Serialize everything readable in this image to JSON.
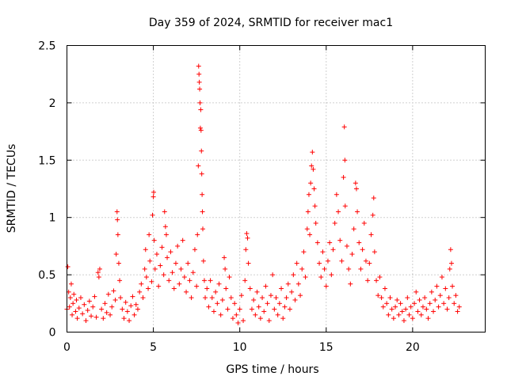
{
  "chart_data": {
    "type": "scatter",
    "title": "Day 359 of 2024, SRMTID for receiver mac1",
    "xlabel": "GPS time / hours",
    "ylabel": "SRMTID / TECUs",
    "xlim": [
      0,
      24.2
    ],
    "ylim": [
      0,
      2.5
    ],
    "xticks": [
      0,
      5,
      10,
      15,
      20
    ],
    "xtick_labels": [
      "0",
      "5",
      "10",
      "15",
      "20"
    ],
    "yticks": [
      0,
      0.5,
      1,
      1.5,
      2,
      2.5
    ],
    "ytick_labels": [
      "0",
      "0.5",
      "1",
      "1.5",
      "2",
      "2.5"
    ],
    "grid": true,
    "marker": "+",
    "color": "#ff0000",
    "series": [
      {
        "name": "mac1",
        "points": [
          [
            0.0,
            0.2
          ],
          [
            0.05,
            0.57
          ],
          [
            0.1,
            0.35
          ],
          [
            0.15,
            0.22
          ],
          [
            0.2,
            0.3
          ],
          [
            0.25,
            0.42
          ],
          [
            0.3,
            0.15
          ],
          [
            0.35,
            0.25
          ],
          [
            0.4,
            0.33
          ],
          [
            0.5,
            0.18
          ],
          [
            0.55,
            0.28
          ],
          [
            0.6,
            0.12
          ],
          [
            0.7,
            0.21
          ],
          [
            0.8,
            0.3
          ],
          [
            0.9,
            0.16
          ],
          [
            1.0,
            0.24
          ],
          [
            1.1,
            0.1
          ],
          [
            1.2,
            0.19
          ],
          [
            1.3,
            0.27
          ],
          [
            1.4,
            0.14
          ],
          [
            1.5,
            0.22
          ],
          [
            1.6,
            0.31
          ],
          [
            1.7,
            0.13
          ],
          [
            1.8,
            0.52
          ],
          [
            1.85,
            0.48
          ],
          [
            1.9,
            0.55
          ],
          [
            2.0,
            0.2
          ],
          [
            2.1,
            0.12
          ],
          [
            2.2,
            0.25
          ],
          [
            2.3,
            0.17
          ],
          [
            2.4,
            0.33
          ],
          [
            2.5,
            0.15
          ],
          [
            2.6,
            0.22
          ],
          [
            2.7,
            0.36
          ],
          [
            2.8,
            0.28
          ],
          [
            2.85,
            0.68
          ],
          [
            2.9,
            1.05
          ],
          [
            2.92,
            0.98
          ],
          [
            2.95,
            0.85
          ],
          [
            3.0,
            0.6
          ],
          [
            3.05,
            0.45
          ],
          [
            3.1,
            0.3
          ],
          [
            3.2,
            0.2
          ],
          [
            3.3,
            0.12
          ],
          [
            3.4,
            0.26
          ],
          [
            3.5,
            0.18
          ],
          [
            3.6,
            0.1
          ],
          [
            3.7,
            0.23
          ],
          [
            3.8,
            0.31
          ],
          [
            3.9,
            0.15
          ],
          [
            4.0,
            0.24
          ],
          [
            4.1,
            0.2
          ],
          [
            4.2,
            0.35
          ],
          [
            4.3,
            0.42
          ],
          [
            4.4,
            0.3
          ],
          [
            4.5,
            0.55
          ],
          [
            4.55,
            0.72
          ],
          [
            4.6,
            0.48
          ],
          [
            4.7,
            0.38
          ],
          [
            4.75,
            0.85
          ],
          [
            4.8,
            0.62
          ],
          [
            4.9,
            0.44
          ],
          [
            4.95,
            1.02
          ],
          [
            5.0,
            1.18
          ],
          [
            5.02,
            1.22
          ],
          [
            5.05,
            0.8
          ],
          [
            5.1,
            0.55
          ],
          [
            5.2,
            0.68
          ],
          [
            5.3,
            0.4
          ],
          [
            5.4,
            0.58
          ],
          [
            5.5,
            0.74
          ],
          [
            5.6,
            0.5
          ],
          [
            5.65,
            1.05
          ],
          [
            5.7,
            0.92
          ],
          [
            5.75,
            0.85
          ],
          [
            5.8,
            0.65
          ],
          [
            5.9,
            0.45
          ],
          [
            6.0,
            0.7
          ],
          [
            6.1,
            0.52
          ],
          [
            6.2,
            0.38
          ],
          [
            6.3,
            0.6
          ],
          [
            6.4,
            0.75
          ],
          [
            6.5,
            0.42
          ],
          [
            6.6,
            0.55
          ],
          [
            6.7,
            0.8
          ],
          [
            6.8,
            0.48
          ],
          [
            6.9,
            0.35
          ],
          [
            7.0,
            0.6
          ],
          [
            7.1,
            0.45
          ],
          [
            7.2,
            0.3
          ],
          [
            7.3,
            0.52
          ],
          [
            7.4,
            0.72
          ],
          [
            7.5,
            0.4
          ],
          [
            7.55,
            0.85
          ],
          [
            7.6,
            1.45
          ],
          [
            7.62,
            2.32
          ],
          [
            7.64,
            2.25
          ],
          [
            7.66,
            2.18
          ],
          [
            7.68,
            2.12
          ],
          [
            7.7,
            2.0
          ],
          [
            7.72,
            1.78
          ],
          [
            7.74,
            1.94
          ],
          [
            7.76,
            1.76
          ],
          [
            7.78,
            1.58
          ],
          [
            7.8,
            1.38
          ],
          [
            7.82,
            1.2
          ],
          [
            7.84,
            1.05
          ],
          [
            7.86,
            0.9
          ],
          [
            7.9,
            0.62
          ],
          [
            7.95,
            0.45
          ],
          [
            8.0,
            0.3
          ],
          [
            8.1,
            0.38
          ],
          [
            8.2,
            0.22
          ],
          [
            8.3,
            0.45
          ],
          [
            8.4,
            0.3
          ],
          [
            8.5,
            0.18
          ],
          [
            8.6,
            0.35
          ],
          [
            8.7,
            0.25
          ],
          [
            8.8,
            0.42
          ],
          [
            8.9,
            0.15
          ],
          [
            9.0,
            0.28
          ],
          [
            9.1,
            0.65
          ],
          [
            9.15,
            0.55
          ],
          [
            9.2,
            0.38
          ],
          [
            9.3,
            0.2
          ],
          [
            9.4,
            0.48
          ],
          [
            9.5,
            0.3
          ],
          [
            9.6,
            0.12
          ],
          [
            9.7,
            0.25
          ],
          [
            9.8,
            0.15
          ],
          [
            9.9,
            0.08
          ],
          [
            10.0,
            0.2
          ],
          [
            10.1,
            0.32
          ],
          [
            10.2,
            0.1
          ],
          [
            10.3,
            0.45
          ],
          [
            10.35,
            0.72
          ],
          [
            10.4,
            0.86
          ],
          [
            10.45,
            0.82
          ],
          [
            10.5,
            0.6
          ],
          [
            10.6,
            0.38
          ],
          [
            10.7,
            0.2
          ],
          [
            10.8,
            0.28
          ],
          [
            10.9,
            0.15
          ],
          [
            11.0,
            0.35
          ],
          [
            11.1,
            0.22
          ],
          [
            11.2,
            0.12
          ],
          [
            11.3,
            0.3
          ],
          [
            11.4,
            0.18
          ],
          [
            11.5,
            0.4
          ],
          [
            11.6,
            0.25
          ],
          [
            11.7,
            0.1
          ],
          [
            11.8,
            0.32
          ],
          [
            11.9,
            0.5
          ],
          [
            12.0,
            0.2
          ],
          [
            12.1,
            0.3
          ],
          [
            12.2,
            0.15
          ],
          [
            12.3,
            0.25
          ],
          [
            12.4,
            0.38
          ],
          [
            12.5,
            0.12
          ],
          [
            12.6,
            0.22
          ],
          [
            12.7,
            0.3
          ],
          [
            12.8,
            0.42
          ],
          [
            12.9,
            0.2
          ],
          [
            13.0,
            0.35
          ],
          [
            13.1,
            0.5
          ],
          [
            13.2,
            0.28
          ],
          [
            13.3,
            0.6
          ],
          [
            13.4,
            0.42
          ],
          [
            13.5,
            0.32
          ],
          [
            13.6,
            0.55
          ],
          [
            13.7,
            0.7
          ],
          [
            13.8,
            0.48
          ],
          [
            13.9,
            0.9
          ],
          [
            13.95,
            1.05
          ],
          [
            14.0,
            1.2
          ],
          [
            14.05,
            0.85
          ],
          [
            14.1,
            1.3
          ],
          [
            14.15,
            1.45
          ],
          [
            14.2,
            1.57
          ],
          [
            14.25,
            1.42
          ],
          [
            14.3,
            1.25
          ],
          [
            14.35,
            1.1
          ],
          [
            14.4,
            0.95
          ],
          [
            14.5,
            0.78
          ],
          [
            14.6,
            0.6
          ],
          [
            14.7,
            0.48
          ],
          [
            14.8,
            0.7
          ],
          [
            14.9,
            0.55
          ],
          [
            15.0,
            0.4
          ],
          [
            15.1,
            0.62
          ],
          [
            15.2,
            0.78
          ],
          [
            15.3,
            0.5
          ],
          [
            15.4,
            0.72
          ],
          [
            15.5,
            0.95
          ],
          [
            15.6,
            1.2
          ],
          [
            15.7,
            1.05
          ],
          [
            15.8,
            0.8
          ],
          [
            15.9,
            0.62
          ],
          [
            16.0,
            1.35
          ],
          [
            16.05,
            1.79
          ],
          [
            16.08,
            1.5
          ],
          [
            16.1,
            1.1
          ],
          [
            16.2,
            0.75
          ],
          [
            16.3,
            0.55
          ],
          [
            16.4,
            0.42
          ],
          [
            16.5,
            0.68
          ],
          [
            16.6,
            0.9
          ],
          [
            16.7,
            1.3
          ],
          [
            16.75,
            1.25
          ],
          [
            16.8,
            1.05
          ],
          [
            16.9,
            0.78
          ],
          [
            17.0,
            0.55
          ],
          [
            17.1,
            0.72
          ],
          [
            17.2,
            0.95
          ],
          [
            17.3,
            0.62
          ],
          [
            17.4,
            0.45
          ],
          [
            17.5,
            0.6
          ],
          [
            17.6,
            0.85
          ],
          [
            17.7,
            1.02
          ],
          [
            17.75,
            1.17
          ],
          [
            17.8,
            0.7
          ],
          [
            17.9,
            0.45
          ],
          [
            18.0,
            0.32
          ],
          [
            18.1,
            0.48
          ],
          [
            18.2,
            0.3
          ],
          [
            18.3,
            0.22
          ],
          [
            18.4,
            0.38
          ],
          [
            18.5,
            0.25
          ],
          [
            18.6,
            0.15
          ],
          [
            18.7,
            0.3
          ],
          [
            18.8,
            0.2
          ],
          [
            18.9,
            0.12
          ],
          [
            19.0,
            0.22
          ],
          [
            19.1,
            0.28
          ],
          [
            19.2,
            0.15
          ],
          [
            19.3,
            0.25
          ],
          [
            19.4,
            0.18
          ],
          [
            19.5,
            0.1
          ],
          [
            19.6,
            0.2
          ],
          [
            19.7,
            0.3
          ],
          [
            19.8,
            0.15
          ],
          [
            19.9,
            0.22
          ],
          [
            20.0,
            0.12
          ],
          [
            20.1,
            0.25
          ],
          [
            20.2,
            0.35
          ],
          [
            20.3,
            0.18
          ],
          [
            20.4,
            0.28
          ],
          [
            20.5,
            0.15
          ],
          [
            20.6,
            0.22
          ],
          [
            20.7,
            0.3
          ],
          [
            20.8,
            0.2
          ],
          [
            20.9,
            0.12
          ],
          [
            21.0,
            0.25
          ],
          [
            21.1,
            0.35
          ],
          [
            21.2,
            0.18
          ],
          [
            21.3,
            0.28
          ],
          [
            21.4,
            0.4
          ],
          [
            21.5,
            0.22
          ],
          [
            21.6,
            0.32
          ],
          [
            21.7,
            0.48
          ],
          [
            21.8,
            0.25
          ],
          [
            21.9,
            0.38
          ],
          [
            22.0,
            0.2
          ],
          [
            22.1,
            0.3
          ],
          [
            22.15,
            0.55
          ],
          [
            22.2,
            0.72
          ],
          [
            22.25,
            0.6
          ],
          [
            22.3,
            0.4
          ],
          [
            22.4,
            0.25
          ],
          [
            22.5,
            0.32
          ],
          [
            22.6,
            0.18
          ],
          [
            22.7,
            0.22
          ]
        ]
      }
    ]
  }
}
